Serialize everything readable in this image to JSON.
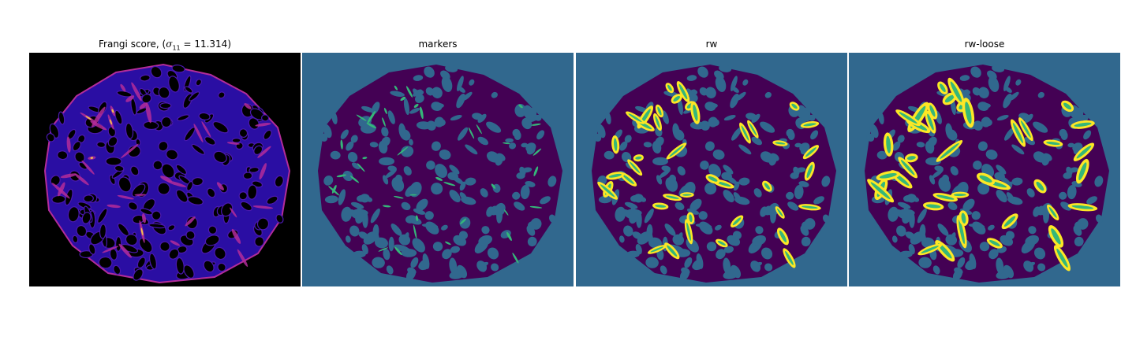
{
  "figure": {
    "panels": [
      {
        "id": "frangi",
        "title_prefix": "Frangi score, (",
        "sigma_symbol": "σ",
        "sigma_sub": "11",
        "title_suffix": " = 11.314)"
      },
      {
        "id": "markers",
        "title": "markers"
      },
      {
        "id": "rw",
        "title": "rw"
      },
      {
        "id": "rw-loose",
        "title": "rw-loose"
      }
    ]
  },
  "colors": {
    "frangi_background": "#000000",
    "frangi_blob": "#2a0ea3",
    "frangi_vessel": "#b32c9a",
    "frangi_bright": "#f2c14e",
    "seg_background": "#31688e",
    "seg_tissue": "#440154",
    "seg_marker": "#35b779",
    "seg_highlight": "#fde725"
  }
}
